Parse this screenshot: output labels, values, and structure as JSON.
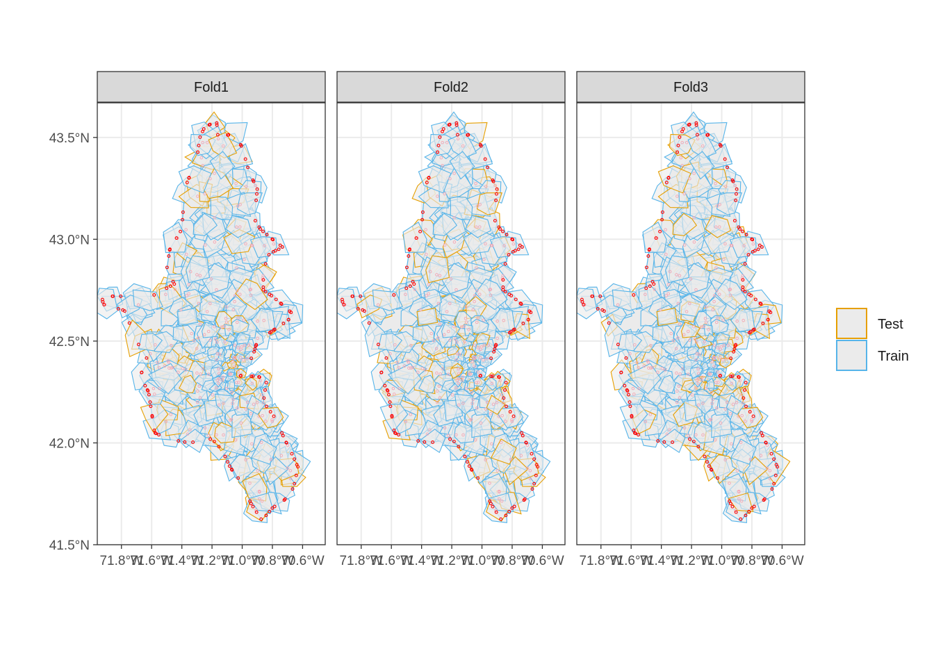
{
  "chart_data": {
    "type": "map",
    "facets": [
      "Fold1",
      "Fold2",
      "Fold3"
    ],
    "y_ticks": [
      {
        "value": 43.5,
        "label": "43.5°N"
      },
      {
        "value": 43.0,
        "label": "43.0°N"
      },
      {
        "value": 42.5,
        "label": "42.5°N"
      },
      {
        "value": 42.0,
        "label": "42.0°N"
      },
      {
        "value": 41.5,
        "label": "41.5°N"
      }
    ],
    "x_ticks": [
      {
        "value": -71.8,
        "label": "71.8°W"
      },
      {
        "value": -71.6,
        "label": "71.6°W"
      },
      {
        "value": -71.4,
        "label": "71.4°W"
      },
      {
        "value": -71.2,
        "label": "71.2°W"
      },
      {
        "value": -71.0,
        "label": "71.0°W"
      },
      {
        "value": -70.8,
        "label": "70.8°W"
      },
      {
        "value": -70.6,
        "label": "70.6°W"
      }
    ],
    "xlim": [
      -71.96,
      -70.45
    ],
    "ylim": [
      41.5,
      43.67
    ],
    "legend": {
      "position": "right",
      "items": [
        {
          "label": "Test",
          "color": "#E69F00"
        },
        {
          "label": "Train",
          "color": "#56B4E9"
        }
      ]
    },
    "grid": true,
    "colors": {
      "fill": "#ebebeb",
      "point": "#ff0000",
      "centroid": "#f4a6b4",
      "strip_bg": "#d9d9d9",
      "grid": "#ebebeb"
    }
  }
}
